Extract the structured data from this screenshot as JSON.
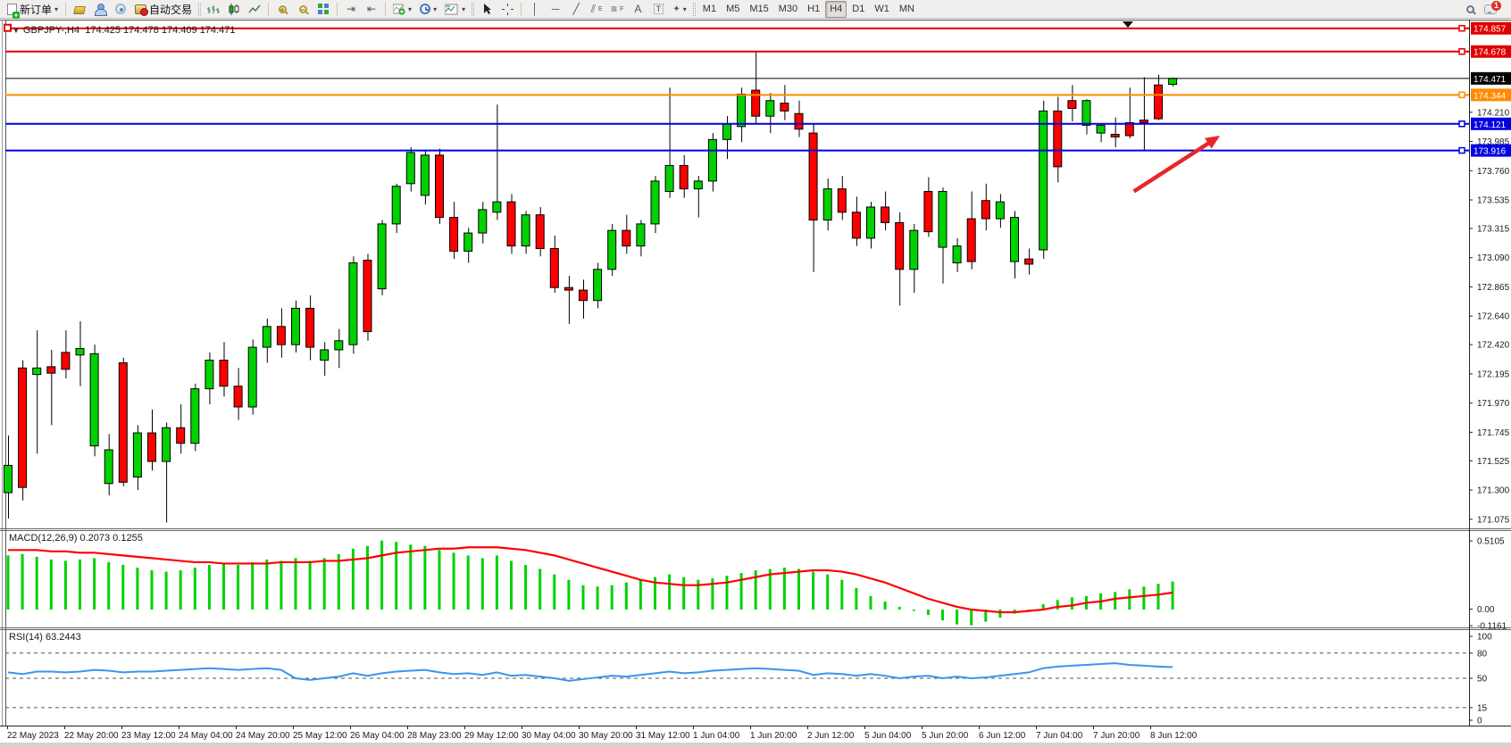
{
  "toolbar": {
    "new_order_label": "新订单",
    "autotrading_label": "自动交易",
    "text_tool_label": "A",
    "label_tool_label": "T",
    "equidistant_sub": "E",
    "fibonacci_sub": "F",
    "timeframes": [
      "M1",
      "M5",
      "M15",
      "M30",
      "H1",
      "H4",
      "D1",
      "W1",
      "MN"
    ],
    "active_timeframe": "H4",
    "notification_badge": "1"
  },
  "chart": {
    "title": "GBPJPY-,H4",
    "ohlc_display": "174.425 174.478 174.409 174.471",
    "macd_label": "MACD(12,26,9) 0.2073 0.1255",
    "rsi_label": "RSI(14) 63.2443"
  },
  "chart_data": {
    "type": "candlestick",
    "symbol": "GBPJPY-",
    "timeframe": "H4",
    "current_bar": {
      "open": 174.425,
      "high": 174.478,
      "low": 174.409,
      "close": 174.471
    },
    "bull_color": "#00d200",
    "bear_color": "#ff0000",
    "x_labels": [
      "22 May 2023",
      "22 May 20:00",
      "23 May 12:00",
      "24 May 04:00",
      "24 May 20:00",
      "25 May 12:00",
      "26 May 04:00",
      "28 May 23:00",
      "29 May 12:00",
      "30 May 04:00",
      "30 May 20:00",
      "31 May 12:00",
      "1 Jun 04:00",
      "1 Jun 20:00",
      "2 Jun 12:00",
      "5 Jun 04:00",
      "5 Jun 20:00",
      "6 Jun 12:00",
      "7 Jun 04:00",
      "7 Jun 20:00",
      "8 Jun 12:00"
    ],
    "y_ticks": [
      174.21,
      173.985,
      173.76,
      173.535,
      173.315,
      173.09,
      172.865,
      172.64,
      172.42,
      172.195,
      171.97,
      171.745,
      171.525,
      171.3,
      171.075
    ],
    "levels": [
      {
        "price": 174.857,
        "label": "174.857",
        "color": "#e00000",
        "width": 2,
        "kind": "resistance"
      },
      {
        "price": 174.678,
        "label": "174.678",
        "color": "#e00000",
        "width": 2,
        "kind": "resistance"
      },
      {
        "price": 174.471,
        "label": "174.471",
        "color": "#000000",
        "width": 1,
        "kind": "current-price"
      },
      {
        "price": 174.344,
        "label": "174.344",
        "color": "#ff8a00",
        "width": 2,
        "kind": "level"
      },
      {
        "price": 174.121,
        "label": "174.121",
        "color": "#0000e0",
        "width": 2,
        "kind": "support"
      },
      {
        "price": 173.916,
        "label": "173.916",
        "color": "#0000e0",
        "width": 2,
        "kind": "support"
      }
    ],
    "candles": [
      [
        171.28,
        171.72,
        171.08,
        171.49
      ],
      [
        172.24,
        172.3,
        171.22,
        171.32
      ],
      [
        172.19,
        172.53,
        171.58,
        172.24
      ],
      [
        172.25,
        172.38,
        171.8,
        172.2
      ],
      [
        172.36,
        172.53,
        172.16,
        172.23
      ],
      [
        172.34,
        172.6,
        172.1,
        172.39
      ],
      [
        171.64,
        172.42,
        171.56,
        172.35
      ],
      [
        171.35,
        171.73,
        171.26,
        171.61
      ],
      [
        172.28,
        172.32,
        171.33,
        171.36
      ],
      [
        171.4,
        171.8,
        171.3,
        171.74
      ],
      [
        171.74,
        171.92,
        171.45,
        171.52
      ],
      [
        171.52,
        171.82,
        171.05,
        171.78
      ],
      [
        171.78,
        171.96,
        171.58,
        171.66
      ],
      [
        171.66,
        172.12,
        171.6,
        172.08
      ],
      [
        172.08,
        172.36,
        171.96,
        172.3
      ],
      [
        172.3,
        172.44,
        172.02,
        172.1
      ],
      [
        172.1,
        172.24,
        171.84,
        171.94
      ],
      [
        171.94,
        172.46,
        171.88,
        172.4
      ],
      [
        172.4,
        172.62,
        172.28,
        172.56
      ],
      [
        172.56,
        172.7,
        172.32,
        172.42
      ],
      [
        172.42,
        172.76,
        172.36,
        172.7
      ],
      [
        172.7,
        172.8,
        172.3,
        172.4
      ],
      [
        172.3,
        172.44,
        172.18,
        172.38
      ],
      [
        172.38,
        172.54,
        172.24,
        172.45
      ],
      [
        172.42,
        173.1,
        172.35,
        173.05
      ],
      [
        173.07,
        173.12,
        172.45,
        172.52
      ],
      [
        172.85,
        173.38,
        172.8,
        173.35
      ],
      [
        173.35,
        173.66,
        173.28,
        173.64
      ],
      [
        173.66,
        173.94,
        173.6,
        173.9
      ],
      [
        173.57,
        173.92,
        173.5,
        173.88
      ],
      [
        173.88,
        173.93,
        173.35,
        173.4
      ],
      [
        173.4,
        173.52,
        173.08,
        173.14
      ],
      [
        173.14,
        173.32,
        173.05,
        173.28
      ],
      [
        173.28,
        173.52,
        173.2,
        173.46
      ],
      [
        173.44,
        174.27,
        173.38,
        173.52
      ],
      [
        173.52,
        173.58,
        173.12,
        173.18
      ],
      [
        173.18,
        173.45,
        173.12,
        173.42
      ],
      [
        173.42,
        173.48,
        173.1,
        173.16
      ],
      [
        173.16,
        173.26,
        172.82,
        172.86
      ],
      [
        172.86,
        172.95,
        172.58,
        172.84
      ],
      [
        172.84,
        172.92,
        172.62,
        172.76
      ],
      [
        172.76,
        173.05,
        172.7,
        173.0
      ],
      [
        173.0,
        173.35,
        172.95,
        173.3
      ],
      [
        173.3,
        173.42,
        173.12,
        173.18
      ],
      [
        173.18,
        173.38,
        173.1,
        173.35
      ],
      [
        173.35,
        173.72,
        173.28,
        173.68
      ],
      [
        173.6,
        174.4,
        173.55,
        173.8
      ],
      [
        173.8,
        173.88,
        173.55,
        173.62
      ],
      [
        173.62,
        173.72,
        173.4,
        173.68
      ],
      [
        173.68,
        174.05,
        173.6,
        174.0
      ],
      [
        174.0,
        174.18,
        173.85,
        174.12
      ],
      [
        174.1,
        174.4,
        173.98,
        174.35
      ],
      [
        174.38,
        174.68,
        174.12,
        174.18
      ],
      [
        174.18,
        174.36,
        174.05,
        174.3
      ],
      [
        174.28,
        174.42,
        174.15,
        174.22
      ],
      [
        174.2,
        174.3,
        174.02,
        174.08
      ],
      [
        174.05,
        174.12,
        172.98,
        173.38
      ],
      [
        173.38,
        173.7,
        173.3,
        173.62
      ],
      [
        173.62,
        173.72,
        173.38,
        173.44
      ],
      [
        173.44,
        173.56,
        173.18,
        173.24
      ],
      [
        173.24,
        173.52,
        173.16,
        173.48
      ],
      [
        173.48,
        173.6,
        173.3,
        173.36
      ],
      [
        173.36,
        173.44,
        172.72,
        173.0
      ],
      [
        173.0,
        173.35,
        172.82,
        173.3
      ],
      [
        173.6,
        173.71,
        173.25,
        173.29
      ],
      [
        173.17,
        173.63,
        172.89,
        173.6
      ],
      [
        173.05,
        173.24,
        172.98,
        173.18
      ],
      [
        173.39,
        173.6,
        173.0,
        173.06
      ],
      [
        173.53,
        173.66,
        173.3,
        173.39
      ],
      [
        173.39,
        173.58,
        173.32,
        173.52
      ],
      [
        173.06,
        173.45,
        172.93,
        173.4
      ],
      [
        173.08,
        173.16,
        172.96,
        173.04
      ],
      [
        173.15,
        174.3,
        173.08,
        174.22
      ],
      [
        174.22,
        174.33,
        173.67,
        173.79
      ],
      [
        174.3,
        174.42,
        174.14,
        174.24
      ],
      [
        174.11,
        174.31,
        174.04,
        174.3
      ],
      [
        174.05,
        174.12,
        173.98,
        174.11
      ],
      [
        174.04,
        174.17,
        173.94,
        174.02
      ],
      [
        174.13,
        174.4,
        174.01,
        174.03
      ],
      [
        174.15,
        174.48,
        173.91,
        174.13
      ],
      [
        174.42,
        174.5,
        174.15,
        174.16
      ],
      [
        174.425,
        174.478,
        174.409,
        174.471
      ]
    ],
    "indicators": [
      {
        "name": "MACD",
        "params": "12,26,9",
        "current": [
          0.2073,
          0.1255
        ],
        "axis": [
          "0.5105",
          "0.00",
          "-0.1161"
        ],
        "histogram_color": "#00d200",
        "signal_color": "#ff0000",
        "histogram": [
          0.4,
          0.41,
          0.39,
          0.37,
          0.36,
          0.37,
          0.38,
          0.35,
          0.33,
          0.31,
          0.29,
          0.28,
          0.29,
          0.31,
          0.33,
          0.34,
          0.33,
          0.35,
          0.37,
          0.36,
          0.38,
          0.36,
          0.38,
          0.41,
          0.45,
          0.47,
          0.51,
          0.5,
          0.48,
          0.47,
          0.44,
          0.42,
          0.4,
          0.38,
          0.4,
          0.36,
          0.33,
          0.3,
          0.26,
          0.22,
          0.18,
          0.17,
          0.18,
          0.2,
          0.22,
          0.24,
          0.26,
          0.24,
          0.22,
          0.23,
          0.25,
          0.27,
          0.29,
          0.3,
          0.31,
          0.3,
          0.28,
          0.26,
          0.22,
          0.16,
          0.1,
          0.06,
          0.02,
          -0.01,
          -0.04,
          -0.08,
          -0.11,
          -0.1161,
          -0.09,
          -0.06,
          -0.03,
          0.0,
          0.04,
          0.07,
          0.09,
          0.1,
          0.12,
          0.13,
          0.15,
          0.17,
          0.19,
          0.2073
        ],
        "signal": [
          0.44,
          0.44,
          0.44,
          0.43,
          0.43,
          0.42,
          0.42,
          0.41,
          0.4,
          0.39,
          0.38,
          0.37,
          0.36,
          0.35,
          0.35,
          0.34,
          0.34,
          0.34,
          0.34,
          0.35,
          0.35,
          0.35,
          0.36,
          0.36,
          0.37,
          0.38,
          0.4,
          0.42,
          0.43,
          0.44,
          0.45,
          0.45,
          0.46,
          0.46,
          0.46,
          0.45,
          0.44,
          0.42,
          0.4,
          0.37,
          0.34,
          0.31,
          0.28,
          0.25,
          0.22,
          0.2,
          0.19,
          0.18,
          0.18,
          0.19,
          0.2,
          0.22,
          0.24,
          0.26,
          0.27,
          0.28,
          0.29,
          0.29,
          0.28,
          0.26,
          0.23,
          0.2,
          0.16,
          0.12,
          0.08,
          0.05,
          0.02,
          0.0,
          -0.01,
          -0.02,
          -0.02,
          -0.01,
          0.0,
          0.02,
          0.03,
          0.05,
          0.06,
          0.08,
          0.09,
          0.1,
          0.11,
          0.1255
        ]
      },
      {
        "name": "RSI",
        "params": "14",
        "current": 63.2443,
        "axis": [
          "100",
          "80",
          "50",
          "15",
          "0"
        ],
        "levels": [
          80,
          50,
          15
        ],
        "line_color": "#3a95ed",
        "series": [
          57,
          55,
          58,
          58,
          57,
          58,
          60,
          59,
          57,
          58,
          58,
          59,
          60,
          61,
          62,
          61,
          60,
          61,
          62,
          60,
          50,
          48,
          50,
          52,
          56,
          53,
          56,
          58,
          59,
          60,
          57,
          55,
          56,
          54,
          57,
          53,
          54,
          52,
          50,
          47,
          49,
          51,
          53,
          52,
          54,
          56,
          58,
          56,
          57,
          59,
          60,
          61,
          62,
          61,
          60,
          59,
          54,
          56,
          55,
          53,
          55,
          53,
          50,
          52,
          53,
          50,
          52,
          50,
          51,
          53,
          55,
          57,
          62,
          64,
          65,
          66,
          67,
          68,
          66,
          65,
          64,
          63.24
        ]
      }
    ],
    "annotation_arrow": {
      "from_bar": 78.3,
      "from_price": 173.6,
      "to_bar": 84.3,
      "to_price": 174.03,
      "color": "#e8262a"
    }
  }
}
